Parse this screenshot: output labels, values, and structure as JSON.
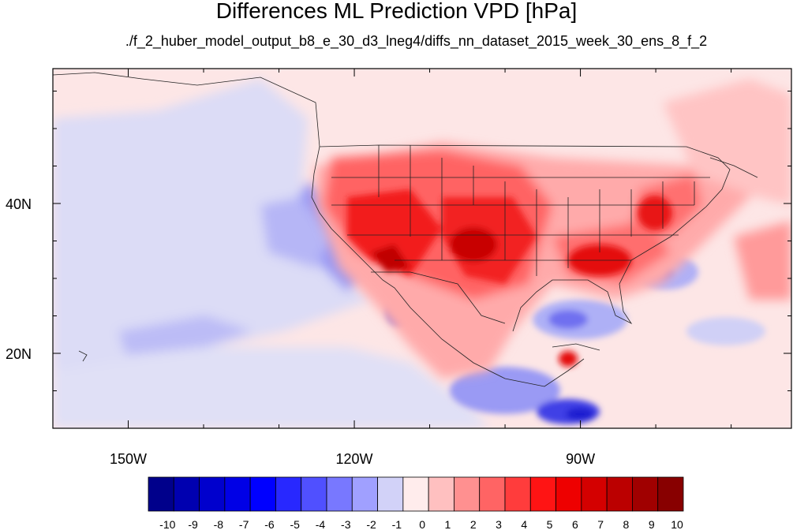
{
  "title": "Differences ML Prediction VPD [hPa]",
  "subtitle": "./f_2_huber_model_output_b8_e_30_d3_lneg4/diffs_nn_dataset_2015_week_30_ens_8_f_2",
  "map": {
    "projection": "cylindrical-equidistant",
    "lon_range": [
      -160,
      -62
    ],
    "lat_range": [
      10,
      58
    ],
    "lon_tick_labels": [
      {
        "lon": -150,
        "label": "150W"
      },
      {
        "lon": -120,
        "label": "120W"
      },
      {
        "lon": -90,
        "label": "90W"
      }
    ],
    "lat_tick_labels": [
      {
        "lat": 40,
        "label": "40N"
      },
      {
        "lat": 20,
        "label": "20N"
      }
    ],
    "minor_lon_ticks": [
      -160,
      -150,
      -140,
      -130,
      -120,
      -110,
      -100,
      -90,
      -80,
      -70
    ],
    "minor_lat_ticks": [
      15,
      20,
      25,
      30,
      35,
      40,
      45,
      50,
      55
    ]
  },
  "colorbar": {
    "labels": [
      "-10",
      "-9",
      "-8",
      "-7",
      "-6",
      "-5",
      "-4",
      "-3",
      "-2",
      "-1",
      "0",
      "1",
      "2",
      "3",
      "4",
      "5",
      "6",
      "7",
      "8",
      "9",
      "10"
    ],
    "colors": [
      "#00008b",
      "#0000b0",
      "#0000cd",
      "#0000e6",
      "#0000ff",
      "#2828ff",
      "#5050ff",
      "#7878ff",
      "#a0a0ff",
      "#d2d2f8",
      "#ffecec",
      "#ffc0c0",
      "#ff9090",
      "#ff6464",
      "#ff3c3c",
      "#ff1414",
      "#ee0000",
      "#d40000",
      "#bb0000",
      "#a00000",
      "#880000"
    ]
  }
}
